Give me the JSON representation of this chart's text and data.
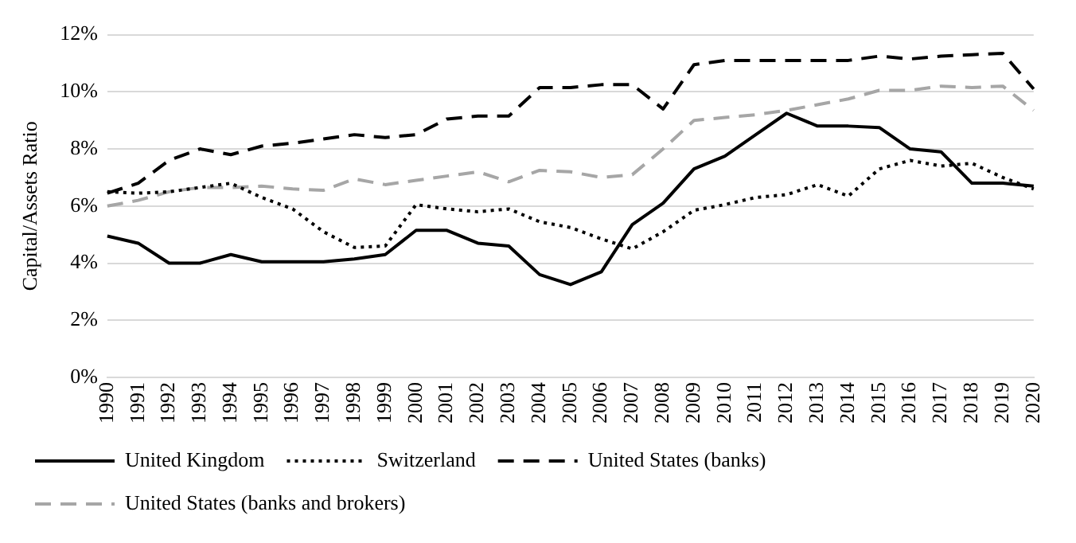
{
  "chart_data": {
    "type": "line",
    "ylabel": "Capital/Assets Ratio",
    "categories": [
      "1990",
      "1991",
      "1992",
      "1993",
      "1994",
      "1995",
      "1996",
      "1997",
      "1998",
      "1999",
      "2000",
      "2001",
      "2002",
      "2003",
      "2004",
      "2005",
      "2006",
      "2007",
      "2008",
      "2009",
      "2010",
      "2011",
      "2012",
      "2013",
      "2014",
      "2015",
      "2016",
      "2017",
      "2018",
      "2019",
      "2020"
    ],
    "series": [
      {
        "name": "United Kingdom",
        "color": "#000000",
        "line_style": "solid",
        "values": [
          4.95,
          4.7,
          4.0,
          4.0,
          4.3,
          4.05,
          4.05,
          4.05,
          4.15,
          4.3,
          5.15,
          5.15,
          4.7,
          4.6,
          3.6,
          3.25,
          3.7,
          5.35,
          6.1,
          7.3,
          7.75,
          8.5,
          9.25,
          8.8,
          8.8,
          8.75,
          8.0,
          7.9,
          6.8,
          6.8,
          6.7
        ]
      },
      {
        "name": "Switzerland",
        "color": "#000000",
        "line_style": "dotted",
        "values": [
          6.5,
          6.45,
          6.5,
          6.65,
          6.8,
          6.3,
          5.9,
          5.1,
          4.55,
          4.6,
          6.05,
          5.9,
          5.8,
          5.9,
          5.45,
          5.25,
          4.85,
          4.5,
          5.1,
          5.85,
          6.05,
          6.3,
          6.4,
          6.75,
          6.35,
          7.3,
          7.6,
          7.4,
          7.5,
          7.0,
          6.6
        ]
      },
      {
        "name": "United States (banks)",
        "color": "#000000",
        "line_style": "dashed",
        "values": [
          6.45,
          6.8,
          7.6,
          8.0,
          7.8,
          8.1,
          8.2,
          8.35,
          8.5,
          8.4,
          8.5,
          9.05,
          9.15,
          9.15,
          10.15,
          10.15,
          10.25,
          10.25,
          9.4,
          10.95,
          11.1,
          11.1,
          11.1,
          11.1,
          11.1,
          11.25,
          11.15,
          11.25,
          11.3,
          11.35,
          10.1
        ]
      },
      {
        "name": "United States (banks and brokers)",
        "color": "#a6a6a6",
        "line_style": "dashed",
        "values": [
          6.0,
          6.2,
          6.5,
          6.65,
          6.65,
          6.7,
          6.6,
          6.55,
          6.95,
          6.75,
          6.9,
          7.05,
          7.2,
          6.85,
          7.25,
          7.2,
          7.0,
          7.1,
          8.0,
          9.0,
          9.1,
          9.2,
          9.35,
          9.55,
          9.75,
          10.05,
          10.05,
          10.2,
          10.15,
          10.2,
          9.35
        ]
      }
    ],
    "ylim": [
      0,
      12
    ],
    "yticks": [
      {
        "value": 0,
        "label": "0%"
      },
      {
        "value": 2,
        "label": "2%"
      },
      {
        "value": 4,
        "label": "4%"
      },
      {
        "value": 6,
        "label": "6%"
      },
      {
        "value": 8,
        "label": "8%"
      },
      {
        "value": 10,
        "label": "10%"
      },
      {
        "value": 12,
        "label": "12%"
      }
    ],
    "grid": "y",
    "legend": "bottom",
    "marker": "none"
  }
}
